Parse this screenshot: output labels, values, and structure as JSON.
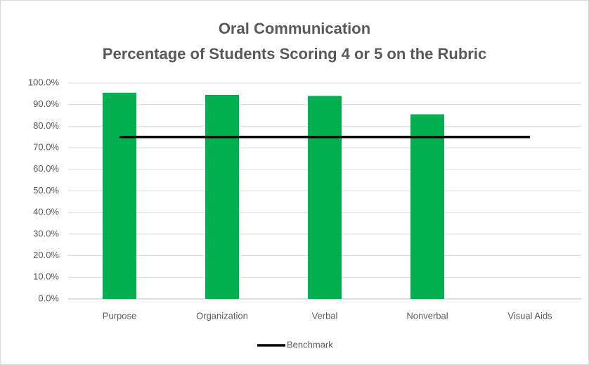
{
  "chart_data": {
    "type": "bar",
    "title": "Oral Communication",
    "subtitle": "Percentage of Students Scoring 4 or 5 on the Rubric",
    "categories": [
      "Purpose",
      "Organization",
      "Verbal",
      "Nonverbal",
      "Visual Aids"
    ],
    "series": [
      {
        "type": "bar",
        "color": "#00b050",
        "values": [
          95.5,
          94.5,
          94,
          85.5,
          null
        ]
      },
      {
        "type": "line",
        "name": "Benchmark",
        "color": "#000000",
        "values": [
          75,
          75,
          75,
          75,
          75
        ]
      }
    ],
    "ylim": [
      0,
      100
    ],
    "yticks": [
      {
        "value": 0,
        "label": "0.0%"
      },
      {
        "value": 10,
        "label": "10.0%"
      },
      {
        "value": 20,
        "label": "20.0%"
      },
      {
        "value": 30,
        "label": "30.0%"
      },
      {
        "value": 40,
        "label": "40.0%"
      },
      {
        "value": 50,
        "label": "50.0%"
      },
      {
        "value": 60,
        "label": "60.0%"
      },
      {
        "value": 70,
        "label": "70.0%"
      },
      {
        "value": 80,
        "label": "80.0%"
      },
      {
        "value": 90,
        "label": "90.0%"
      },
      {
        "value": 100,
        "label": "100.0%"
      }
    ],
    "grid": true,
    "legend": "bottom"
  }
}
